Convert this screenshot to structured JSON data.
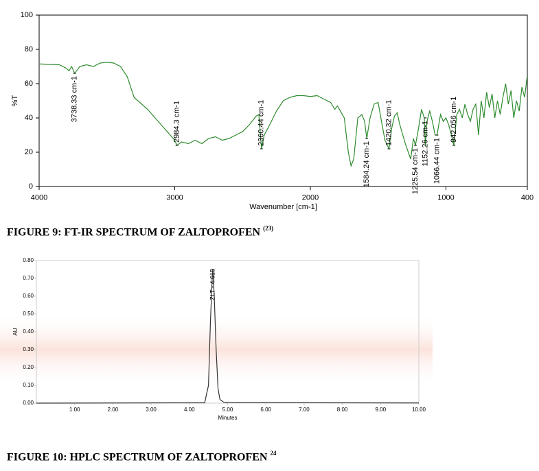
{
  "chart_data": [
    {
      "type": "line",
      "caption": "FIGURE 9: FT-IR SPECTRUM OF ZALTOPROFEN",
      "caption_ref": "(23)",
      "xlabel": "Wavenumber [cm-1]",
      "ylabel": "%T",
      "xlim": [
        4000,
        400
      ],
      "ylim": [
        0,
        100
      ],
      "xticks": [
        4000,
        3000,
        2000,
        1000,
        400
      ],
      "yticks": [
        0,
        20,
        40,
        60,
        80,
        100
      ],
      "color": "#2e8b2e",
      "x": [
        4000,
        3850,
        3800,
        3780,
        3760,
        3738,
        3700,
        3650,
        3600,
        3550,
        3500,
        3450,
        3400,
        3350,
        3300,
        3200,
        3100,
        3000,
        2984,
        2950,
        2900,
        2850,
        2800,
        2750,
        2700,
        2650,
        2600,
        2550,
        2500,
        2450,
        2400,
        2380,
        2360,
        2340,
        2300,
        2250,
        2200,
        2150,
        2100,
        2050,
        2000,
        1950,
        1900,
        1850,
        1820,
        1800,
        1750,
        1720,
        1700,
        1680,
        1650,
        1620,
        1600,
        1584,
        1560,
        1530,
        1500,
        1480,
        1450,
        1420,
        1400,
        1380,
        1360,
        1340,
        1300,
        1260,
        1240,
        1225,
        1200,
        1180,
        1160,
        1152,
        1140,
        1120,
        1100,
        1080,
        1066,
        1040,
        1020,
        1000,
        980,
        960,
        942,
        920,
        900,
        880,
        860,
        840,
        820,
        800,
        780,
        760,
        740,
        720,
        700,
        680,
        660,
        640,
        620,
        600,
        580,
        560,
        540,
        520,
        500,
        480,
        460,
        440,
        420,
        400
      ],
      "values": [
        71.5,
        71,
        69,
        67.5,
        70,
        66,
        70,
        71,
        70,
        72,
        72.5,
        72,
        70,
        64,
        52,
        45,
        36,
        27,
        24,
        26,
        25,
        27,
        25,
        28,
        29,
        27,
        28,
        30,
        32,
        36,
        41,
        42,
        22,
        30,
        36,
        44,
        50,
        52,
        53,
        53,
        52.5,
        53,
        51,
        49,
        45,
        47,
        40,
        20,
        12,
        16,
        40,
        42,
        38,
        28,
        40,
        48,
        49,
        40,
        27,
        22,
        34,
        41,
        43,
        36,
        25,
        16,
        28,
        24,
        35,
        45,
        40,
        24,
        38,
        44,
        38,
        30,
        30,
        42,
        38,
        40,
        36,
        30,
        24,
        42,
        45,
        40,
        48,
        42,
        38,
        45,
        48,
        30,
        50,
        40,
        55,
        46,
        54,
        40,
        50,
        42,
        52,
        60,
        48,
        56,
        40,
        50,
        44,
        58,
        52,
        65
      ],
      "annotations": [
        {
          "x": 3738.33,
          "y": 66,
          "label": "3738.33 cm-1"
        },
        {
          "x": 2984.3,
          "y": 24,
          "label": "2984.3 cm-1"
        },
        {
          "x": 2360.44,
          "y": 22,
          "label": "2360.44 cm-1"
        },
        {
          "x": 1584.24,
          "y": 28,
          "label": "1584.24 cm-1"
        },
        {
          "x": 1420.32,
          "y": 22,
          "label": "1420.32 cm-1"
        },
        {
          "x": 1225.54,
          "y": 24,
          "label": "1225.54 cm-1"
        },
        {
          "x": 1152.26,
          "y": 40,
          "label": "1152.26 cm-1"
        },
        {
          "x": 1066.44,
          "y": 30,
          "label": "1066.44 cm-1"
        },
        {
          "x": 942.056,
          "y": 24,
          "label": "942.056 cm-1"
        }
      ]
    },
    {
      "type": "line",
      "caption": "FIGURE 10: HPLC SPECTRUM OF ZALTOPROFEN",
      "caption_ref": "24",
      "xlabel": "Minutes",
      "ylabel": "AU",
      "xlim": [
        0,
        10
      ],
      "ylim": [
        0,
        0.8
      ],
      "xticks": [
        {
          "value": 1,
          "label": "1.00"
        },
        {
          "value": 2,
          "label": "2.00"
        },
        {
          "value": 3,
          "label": "3.00"
        },
        {
          "value": 4,
          "label": "4.00"
        },
        {
          "value": 5,
          "label": "5.00"
        },
        {
          "value": 6,
          "label": "6.00"
        },
        {
          "value": 7,
          "label": "7.00"
        },
        {
          "value": 8,
          "label": "8.00"
        },
        {
          "value": 9,
          "label": "9.00"
        },
        {
          "value": 10,
          "label": "10.00"
        }
      ],
      "yticks": [
        {
          "value": 0,
          "label": "0.00"
        },
        {
          "value": 0.1,
          "label": "0.10"
        },
        {
          "value": 0.2,
          "label": "0.20"
        },
        {
          "value": 0.3,
          "label": "0.30"
        },
        {
          "value": 0.4,
          "label": "0.40"
        },
        {
          "value": 0.5,
          "label": "0.50"
        },
        {
          "value": 0.6,
          "label": "0.60"
        },
        {
          "value": 0.7,
          "label": "0.70"
        },
        {
          "value": 0.8,
          "label": "0.80"
        }
      ],
      "color": "#333333",
      "x": [
        0,
        4.4,
        4.5,
        4.55,
        4.6,
        4.615,
        4.65,
        4.7,
        4.75,
        4.8,
        4.9,
        5,
        10
      ],
      "values": [
        0,
        0.002,
        0.1,
        0.45,
        0.72,
        0.75,
        0.6,
        0.3,
        0.08,
        0.02,
        0.005,
        0.003,
        0.001
      ],
      "annotations": [
        {
          "x": 4.615,
          "y": 0.75,
          "label": "ZLT - 4.615"
        }
      ]
    }
  ]
}
